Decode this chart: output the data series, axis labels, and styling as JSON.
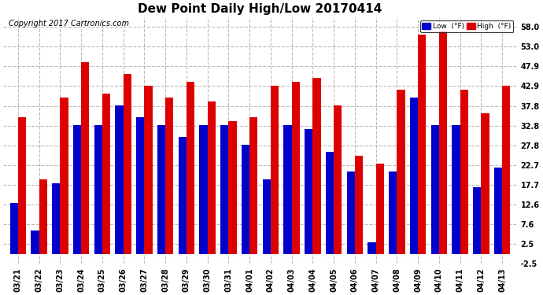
{
  "title": "Dew Point Daily High/Low 20170414",
  "copyright": "Copyright 2017 Cartronics.com",
  "legend_low": "Low  (°F)",
  "legend_high": "High  (°F)",
  "categories": [
    "03/21",
    "03/22",
    "03/23",
    "03/24",
    "03/25",
    "03/26",
    "03/27",
    "03/28",
    "03/29",
    "03/30",
    "03/31",
    "04/01",
    "04/02",
    "04/03",
    "04/04",
    "04/05",
    "04/06",
    "04/07",
    "04/08",
    "04/09",
    "04/10",
    "04/11",
    "04/12",
    "04/13"
  ],
  "low_values": [
    13,
    6,
    18,
    33,
    33,
    38,
    35,
    33,
    30,
    33,
    33,
    28,
    19,
    33,
    32,
    26,
    21,
    3,
    21,
    40,
    33,
    33,
    17,
    22
  ],
  "high_values": [
    35,
    19,
    40,
    49,
    41,
    46,
    43,
    40,
    44,
    39,
    34,
    35,
    43,
    44,
    45,
    38,
    25,
    23,
    42,
    56,
    57,
    42,
    36,
    43
  ],
  "ylim": [
    -2.5,
    60.5
  ],
  "yticks": [
    -2.5,
    2.5,
    7.6,
    12.6,
    17.7,
    22.7,
    27.8,
    32.8,
    37.8,
    42.9,
    47.9,
    53.0,
    58.0
  ],
  "bar_width": 0.38,
  "low_color": "#0000cc",
  "high_color": "#dd0000",
  "bg_color": "#ffffff",
  "grid_color": "#bbbbbb",
  "title_fontsize": 11,
  "tick_fontsize": 7,
  "copyright_fontsize": 7
}
